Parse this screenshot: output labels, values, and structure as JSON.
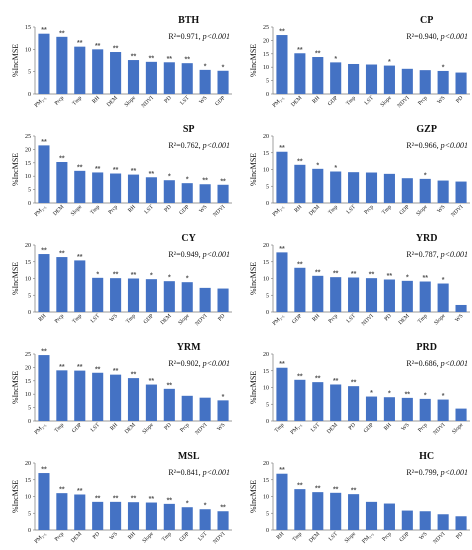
{
  "figure": {
    "ylabel": "%IncMSE"
  },
  "chart_data": [
    {
      "type": "bar",
      "title": "BTH",
      "stat_r2": "R²=0.971,",
      "stat_p": "p<0.001",
      "categories": [
        "PM₂.₅",
        "Prcp",
        "Tmp",
        "RH",
        "DEM",
        "Slope",
        "NDVI",
        "PD",
        "LST",
        "WS",
        "GDP"
      ],
      "values": [
        13.5,
        12.8,
        10.6,
        10.0,
        9.4,
        7.6,
        7.2,
        7.1,
        6.9,
        5.4,
        5.2
      ],
      "significance": [
        "**",
        "**",
        "**",
        "**",
        "**",
        "**",
        "**",
        "**",
        "**",
        "*",
        "*"
      ],
      "ylim": [
        0,
        15
      ],
      "yticks": [
        0,
        5,
        10,
        15
      ],
      "bar_color": "#4472C4"
    },
    {
      "type": "bar",
      "title": "CP",
      "stat_r2": "R²=0.940,",
      "stat_p": "p<0.001",
      "categories": [
        "PM₂.₅",
        "DEM",
        "RH",
        "GDP",
        "Tmp",
        "LST",
        "Slope",
        "NDVI",
        "Prcp",
        "WS",
        "PD"
      ],
      "values": [
        22.0,
        15.2,
        13.8,
        11.8,
        11.2,
        11.0,
        10.6,
        9.4,
        8.9,
        8.6,
        8.0
      ],
      "significance": [
        "**",
        "**",
        "**",
        "*",
        "",
        "",
        "*",
        "",
        "",
        "*",
        ""
      ],
      "ylim": [
        0,
        25
      ],
      "yticks": [
        0,
        5,
        10,
        15,
        20,
        25
      ],
      "bar_color": "#4472C4"
    },
    {
      "type": "bar",
      "title": "SP",
      "stat_r2": "R²=0.762,",
      "stat_p": "p<0.001",
      "categories": [
        "PM₂.₅",
        "DEM",
        "Slope",
        "Tmp",
        "Prcp",
        "RH",
        "LST",
        "PD",
        "GDP",
        "WS",
        "NDVI"
      ],
      "values": [
        21.5,
        15.3,
        12.0,
        11.4,
        11.0,
        10.6,
        9.6,
        8.5,
        7.4,
        7.0,
        6.8
      ],
      "significance": [
        "**",
        "**",
        "**",
        "**",
        "**",
        "**",
        "**",
        "*",
        "*",
        "**",
        "**"
      ],
      "ylim": [
        0,
        25
      ],
      "yticks": [
        0,
        5,
        10,
        15,
        20,
        25
      ],
      "bar_color": "#4472C4"
    },
    {
      "type": "bar",
      "title": "GZP",
      "stat_r2": "R²=0.966,",
      "stat_p": "p<0.001",
      "categories": [
        "PM₂.₅",
        "RH",
        "DEM",
        "Tmp",
        "LST",
        "Prcp",
        "Tmp",
        "GDP",
        "Slope",
        "WS",
        "NDVI"
      ],
      "values": [
        15.3,
        11.4,
        10.2,
        9.4,
        9.2,
        9.1,
        8.7,
        7.4,
        7.2,
        6.7,
        6.4
      ],
      "significance": [
        "**",
        "**",
        "*",
        "*",
        "",
        "",
        "",
        "",
        "*",
        "",
        ""
      ],
      "ylim": [
        0,
        20
      ],
      "yticks": [
        0,
        5,
        10,
        15,
        20
      ],
      "bar_color": "#4472C4"
    },
    {
      "type": "bar",
      "title": "CY",
      "stat_r2": "R²=0.949,",
      "stat_p": "p<0.001",
      "categories": [
        "RH",
        "Prcp",
        "Tmp",
        "LST",
        "WS",
        "Tmp",
        "GDP",
        "DEM",
        "Slope",
        "NDVI",
        "PD"
      ],
      "values": [
        17.3,
        16.4,
        15.4,
        10.2,
        10.1,
        10.0,
        9.8,
        9.2,
        8.9,
        7.2,
        7.0
      ],
      "significance": [
        "**",
        "**",
        "**",
        "*",
        "**",
        "**",
        "*",
        "*",
        "*",
        "",
        ""
      ],
      "ylim": [
        0,
        20
      ],
      "yticks": [
        0,
        5,
        10,
        15,
        20
      ],
      "bar_color": "#4472C4"
    },
    {
      "type": "bar",
      "title": "YRD",
      "stat_r2": "R²=0.787,",
      "stat_p": "p<0.001",
      "categories": [
        "PM₂.₅",
        "GDP",
        "RH",
        "Prcp",
        "LST",
        "NDVI",
        "PD",
        "DEM",
        "Tmp",
        "Slope",
        "WS"
      ],
      "values": [
        17.8,
        13.2,
        10.8,
        10.4,
        10.3,
        10.1,
        9.7,
        9.3,
        9.1,
        8.5,
        2.1
      ],
      "significance": [
        "**",
        "**",
        "**",
        "**",
        "**",
        "**",
        "**",
        "*",
        "**",
        "*",
        ""
      ],
      "ylim": [
        0,
        20
      ],
      "yticks": [
        0,
        5,
        10,
        15,
        20
      ],
      "bar_color": "#4472C4"
    },
    {
      "type": "bar",
      "title": "YRM",
      "stat_r2": "R²=0.902,",
      "stat_p": "p<0.001",
      "categories": [
        "PM₂.₅",
        "Tmp",
        "GDP",
        "LST",
        "RH",
        "DEM",
        "Slope",
        "PD",
        "Prcp",
        "NDVI",
        "WS"
      ],
      "values": [
        24.6,
        18.9,
        18.8,
        18.0,
        17.3,
        16.0,
        13.6,
        12.0,
        9.4,
        8.7,
        7.7
      ],
      "significance": [
        "**",
        "**",
        "**",
        "**",
        "**",
        "**",
        "**",
        "**",
        "",
        "",
        "*"
      ],
      "ylim": [
        0,
        25
      ],
      "yticks": [
        0,
        5,
        10,
        15,
        20,
        25
      ],
      "bar_color": "#4472C4"
    },
    {
      "type": "bar",
      "title": "PRD",
      "stat_r2": "R²=0.686,",
      "stat_p": "p<0.001",
      "categories": [
        "Tmp",
        "PM₂.₅",
        "LST",
        "DEM",
        "PD",
        "GDP",
        "RH",
        "WS",
        "Prcp",
        "NDVI",
        "Slope"
      ],
      "values": [
        15.9,
        12.3,
        11.6,
        10.9,
        10.4,
        7.3,
        7.1,
        6.9,
        6.6,
        6.4,
        3.7
      ],
      "significance": [
        "**",
        "**",
        "**",
        "**",
        "**",
        "*",
        "*",
        "**",
        "*",
        "*",
        ""
      ],
      "ylim": [
        0,
        20
      ],
      "yticks": [
        0,
        5,
        10,
        15,
        20
      ],
      "bar_color": "#4472C4"
    },
    {
      "type": "bar",
      "title": "MSL",
      "stat_r2": "R²=0.841,",
      "stat_p": "p<0.001",
      "categories": [
        "PM₂.₅",
        "Prcp",
        "DEM",
        "PD",
        "WS",
        "RH",
        "Slope",
        "Tmp",
        "GDP",
        "LST",
        "NDVI"
      ],
      "values": [
        17.0,
        11.0,
        10.6,
        8.4,
        8.4,
        8.3,
        8.2,
        7.8,
        6.8,
        6.2,
        5.6
      ],
      "significance": [
        "**",
        "**",
        "**",
        "**",
        "**",
        "**",
        "**",
        "**",
        "*",
        "*",
        "**"
      ],
      "ylim": [
        0,
        20
      ],
      "yticks": [
        0,
        5,
        10,
        15,
        20
      ],
      "bar_color": "#4472C4"
    },
    {
      "type": "bar",
      "title": "HC",
      "stat_r2": "R²=0.799,",
      "stat_p": "p<0.001",
      "categories": [
        "RH",
        "Tmp",
        "DEM",
        "LST",
        "Slope",
        "PM₂.₅",
        "Prcp",
        "GDP",
        "WS",
        "NDVI",
        "PD"
      ],
      "values": [
        16.8,
        12.2,
        11.3,
        11.1,
        10.7,
        8.4,
        7.9,
        5.8,
        5.6,
        4.7,
        4.1
      ],
      "significance": [
        "**",
        "**",
        "**",
        "**",
        "**",
        "",
        "",
        "",
        "",
        "",
        ""
      ],
      "ylim": [
        0,
        20
      ],
      "yticks": [
        0,
        5,
        10,
        15,
        20
      ],
      "bar_color": "#4472C4"
    }
  ]
}
